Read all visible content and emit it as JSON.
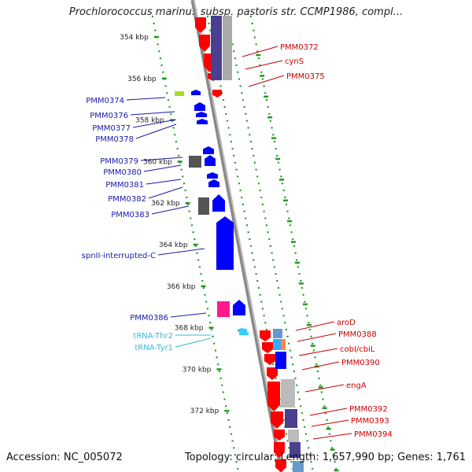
{
  "title": "Prochlorococcus marinus subsp. pastoris str. CCMP1986, compl...",
  "footer": {
    "accession": "Accession: NC_005072",
    "topology": "Topology: circular; Length: 1,657,990 bp; Genes: 1,761"
  },
  "colors": {
    "forward_cds": "#0000ff",
    "reverse_cds": "#ff0000",
    "trna": "#33ccff",
    "left_label": "#1a1aaa",
    "right_label": "#cc0000",
    "trna_label": "#33bbdd",
    "ruler_dots": "#229922",
    "backbone": "#888888"
  },
  "scale_ticks": [
    {
      "kbp": 354,
      "label": "354 kbp"
    },
    {
      "kbp": 356,
      "label": "356 kbp"
    },
    {
      "kbp": 358,
      "label": "358 kbp"
    },
    {
      "kbp": 360,
      "label": "360 kbp"
    },
    {
      "kbp": 362,
      "label": "362 kbp"
    },
    {
      "kbp": 364,
      "label": "364 kbp"
    },
    {
      "kbp": 366,
      "label": "366 kbp"
    },
    {
      "kbp": 368,
      "label": "368 kbp"
    },
    {
      "kbp": 370,
      "label": "370 kbp"
    },
    {
      "kbp": 372,
      "label": "372 kbp"
    }
  ],
  "left_labels": [
    {
      "text": "PMM0374",
      "kind": "gene"
    },
    {
      "text": "PMM0376",
      "kind": "gene"
    },
    {
      "text": "PMM0377",
      "kind": "gene"
    },
    {
      "text": "PMM0378",
      "kind": "gene"
    },
    {
      "text": "PMM0379",
      "kind": "gene"
    },
    {
      "text": "PMM0380",
      "kind": "gene"
    },
    {
      "text": "PMM0381",
      "kind": "gene"
    },
    {
      "text": "PMM0382",
      "kind": "gene"
    },
    {
      "text": "PMM0383",
      "kind": "gene"
    },
    {
      "text": "spnII-interrupted-C",
      "kind": "gene"
    },
    {
      "text": "PMM0386",
      "kind": "gene"
    },
    {
      "text": "tRNA-Thr2",
      "kind": "trna"
    },
    {
      "text": "tRNA-Tyr1",
      "kind": "trna"
    }
  ],
  "right_labels": [
    {
      "text": "PMM0372"
    },
    {
      "text": "cynS"
    },
    {
      "text": "PMM0375"
    },
    {
      "text": "aroD"
    },
    {
      "text": "PMM0388"
    },
    {
      "text": "cobI/cbiL"
    },
    {
      "text": "PMM0390"
    },
    {
      "text": "engA"
    },
    {
      "text": "PMM0392"
    },
    {
      "text": "PMM0393"
    },
    {
      "text": "PMM0394"
    }
  ]
}
